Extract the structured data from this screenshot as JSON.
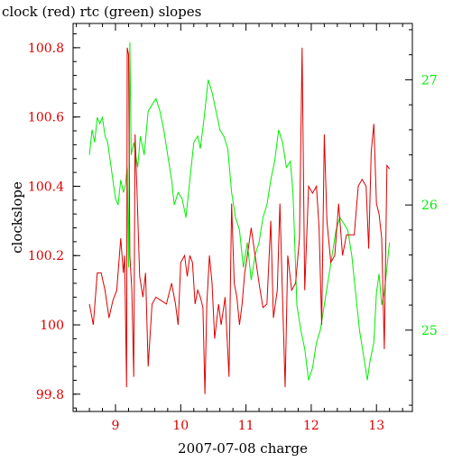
{
  "chart_data": {
    "type": "line",
    "title": "clock (red) rtc (green) slopes",
    "xlabel": "2007-07-08 charge",
    "ylabel": "clockslope",
    "xlim": [
      8.35,
      13.55
    ],
    "ylim_left": [
      99.75,
      100.87
    ],
    "ylim_right": [
      24.35,
      27.45
    ],
    "x_ticks": [
      9,
      10,
      11,
      12,
      13
    ],
    "y_ticks_left": [
      99.8,
      100,
      100.2,
      100.4,
      100.6,
      100.8
    ],
    "y_tick_labels_left": [
      "99.8",
      "100",
      "100.2",
      "100.4",
      "100.6",
      "100.8"
    ],
    "y_ticks_right": [
      25,
      26,
      27
    ],
    "colors": {
      "clock": "#dd0000",
      "rtc": "#00ee00",
      "axis": "#000000",
      "left_tick_text": "#dd0000",
      "right_tick_text": "#00ee00"
    },
    "series": [
      {
        "name": "clock",
        "axis": "left",
        "points": [
          [
            8.6,
            100.06
          ],
          [
            8.66,
            100.0
          ],
          [
            8.72,
            100.15
          ],
          [
            8.78,
            100.15
          ],
          [
            8.84,
            100.1
          ],
          [
            8.9,
            100.02
          ],
          [
            8.96,
            100.07
          ],
          [
            9.02,
            100.1
          ],
          [
            9.08,
            100.25
          ],
          [
            9.12,
            100.15
          ],
          [
            9.14,
            100.2
          ],
          [
            9.17,
            99.82
          ],
          [
            9.18,
            100.8
          ],
          [
            9.2,
            100.78
          ],
          [
            9.22,
            100.2
          ],
          [
            9.25,
            100.1
          ],
          [
            9.28,
            99.85
          ],
          [
            9.3,
            100.55
          ],
          [
            9.33,
            100.38
          ],
          [
            9.37,
            100.14
          ],
          [
            9.42,
            100.08
          ],
          [
            9.46,
            100.15
          ],
          [
            9.5,
            99.88
          ],
          [
            9.56,
            100.06
          ],
          [
            9.62,
            100.08
          ],
          [
            9.7,
            100.07
          ],
          [
            9.78,
            100.06
          ],
          [
            9.86,
            100.12
          ],
          [
            9.92,
            100.06
          ],
          [
            9.96,
            100.0
          ],
          [
            10.0,
            100.18
          ],
          [
            10.06,
            100.2
          ],
          [
            10.1,
            100.14
          ],
          [
            10.14,
            100.2
          ],
          [
            10.18,
            100.18
          ],
          [
            10.22,
            100.06
          ],
          [
            10.26,
            100.1
          ],
          [
            10.3,
            100.08
          ],
          [
            10.34,
            100.05
          ],
          [
            10.37,
            99.8
          ],
          [
            10.4,
            100.06
          ],
          [
            10.44,
            100.2
          ],
          [
            10.48,
            100.12
          ],
          [
            10.52,
            99.96
          ],
          [
            10.58,
            100.06
          ],
          [
            10.62,
            100.0
          ],
          [
            10.68,
            100.08
          ],
          [
            10.74,
            99.85
          ],
          [
            10.78,
            100.35
          ],
          [
            10.82,
            100.12
          ],
          [
            10.86,
            100.08
          ],
          [
            10.9,
            100.0
          ],
          [
            10.94,
            100.06
          ],
          [
            10.98,
            100.15
          ],
          [
            11.02,
            100.2
          ],
          [
            11.08,
            100.28
          ],
          [
            11.14,
            100.2
          ],
          [
            11.2,
            100.12
          ],
          [
            11.26,
            100.05
          ],
          [
            11.32,
            100.06
          ],
          [
            11.38,
            100.3
          ],
          [
            11.42,
            100.02
          ],
          [
            11.48,
            100.1
          ],
          [
            11.52,
            100.35
          ],
          [
            11.56,
            100.08
          ],
          [
            11.6,
            99.82
          ],
          [
            11.64,
            100.2
          ],
          [
            11.7,
            100.1
          ],
          [
            11.76,
            100.12
          ],
          [
            11.82,
            100.25
          ],
          [
            11.86,
            100.8
          ],
          [
            11.9,
            100.1
          ],
          [
            11.96,
            100.4
          ],
          [
            12.02,
            100.38
          ],
          [
            12.08,
            100.4
          ],
          [
            12.12,
            100.28
          ],
          [
            12.16,
            100.0
          ],
          [
            12.2,
            100.55
          ],
          [
            12.24,
            100.3
          ],
          [
            12.3,
            100.18
          ],
          [
            12.36,
            100.2
          ],
          [
            12.42,
            100.35
          ],
          [
            12.48,
            100.2
          ],
          [
            12.54,
            100.26
          ],
          [
            12.6,
            100.26
          ],
          [
            12.66,
            100.26
          ],
          [
            12.72,
            100.4
          ],
          [
            12.78,
            100.42
          ],
          [
            12.84,
            100.4
          ],
          [
            12.88,
            100.22
          ],
          [
            12.92,
            100.5
          ],
          [
            12.96,
            100.58
          ],
          [
            13.0,
            100.35
          ],
          [
            13.04,
            100.32
          ],
          [
            13.08,
            100.25
          ],
          [
            13.12,
            99.93
          ],
          [
            13.16,
            100.46
          ],
          [
            13.2,
            100.45
          ]
        ]
      },
      {
        "name": "rtc",
        "axis": "right",
        "points": [
          [
            8.6,
            26.4
          ],
          [
            8.64,
            26.6
          ],
          [
            8.68,
            26.5
          ],
          [
            8.72,
            26.7
          ],
          [
            8.76,
            26.65
          ],
          [
            8.8,
            26.7
          ],
          [
            8.84,
            26.55
          ],
          [
            8.88,
            26.5
          ],
          [
            8.92,
            26.35
          ],
          [
            8.96,
            26.2
          ],
          [
            9.0,
            26.05
          ],
          [
            9.04,
            26.0
          ],
          [
            9.08,
            26.2
          ],
          [
            9.12,
            26.1
          ],
          [
            9.15,
            26.15
          ],
          [
            9.18,
            26.3
          ],
          [
            9.2,
            25.5
          ],
          [
            9.22,
            27.3
          ],
          [
            9.24,
            26.4
          ],
          [
            9.28,
            26.5
          ],
          [
            9.34,
            26.3
          ],
          [
            9.38,
            26.55
          ],
          [
            9.44,
            26.4
          ],
          [
            9.5,
            26.75
          ],
          [
            9.56,
            26.8
          ],
          [
            9.62,
            26.85
          ],
          [
            9.68,
            26.75
          ],
          [
            9.74,
            26.6
          ],
          [
            9.8,
            26.4
          ],
          [
            9.86,
            26.2
          ],
          [
            9.9,
            26.0
          ],
          [
            9.96,
            26.1
          ],
          [
            10.02,
            26.05
          ],
          [
            10.08,
            25.9
          ],
          [
            10.14,
            26.2
          ],
          [
            10.2,
            26.5
          ],
          [
            10.26,
            26.55
          ],
          [
            10.3,
            26.45
          ],
          [
            10.36,
            26.7
          ],
          [
            10.42,
            27.0
          ],
          [
            10.48,
            26.9
          ],
          [
            10.54,
            26.75
          ],
          [
            10.6,
            26.6
          ],
          [
            10.66,
            26.55
          ],
          [
            10.72,
            26.45
          ],
          [
            10.78,
            26.1
          ],
          [
            10.84,
            25.9
          ],
          [
            10.9,
            25.8
          ],
          [
            10.96,
            25.5
          ],
          [
            11.02,
            25.7
          ],
          [
            11.08,
            25.4
          ],
          [
            11.14,
            25.6
          ],
          [
            11.2,
            25.7
          ],
          [
            11.26,
            25.9
          ],
          [
            11.32,
            26.0
          ],
          [
            11.38,
            26.2
          ],
          [
            11.44,
            26.35
          ],
          [
            11.5,
            26.6
          ],
          [
            11.56,
            26.5
          ],
          [
            11.62,
            26.3
          ],
          [
            11.68,
            26.35
          ],
          [
            11.72,
            26.1
          ],
          [
            11.78,
            25.2
          ],
          [
            11.84,
            25.0
          ],
          [
            11.9,
            24.85
          ],
          [
            11.96,
            24.6
          ],
          [
            12.02,
            24.7
          ],
          [
            12.08,
            24.9
          ],
          [
            12.14,
            25.0
          ],
          [
            12.2,
            25.2
          ],
          [
            12.26,
            25.4
          ],
          [
            12.32,
            25.6
          ],
          [
            12.38,
            25.8
          ],
          [
            12.44,
            25.9
          ],
          [
            12.5,
            25.85
          ],
          [
            12.56,
            25.8
          ],
          [
            12.62,
            25.6
          ],
          [
            12.68,
            25.3
          ],
          [
            12.74,
            25.0
          ],
          [
            12.8,
            24.8
          ],
          [
            12.86,
            24.6
          ],
          [
            12.9,
            24.75
          ],
          [
            12.96,
            24.9
          ],
          [
            13.0,
            25.3
          ],
          [
            13.04,
            25.45
          ],
          [
            13.08,
            25.2
          ],
          [
            13.12,
            25.3
          ],
          [
            13.16,
            25.5
          ],
          [
            13.2,
            25.7
          ]
        ]
      }
    ]
  }
}
